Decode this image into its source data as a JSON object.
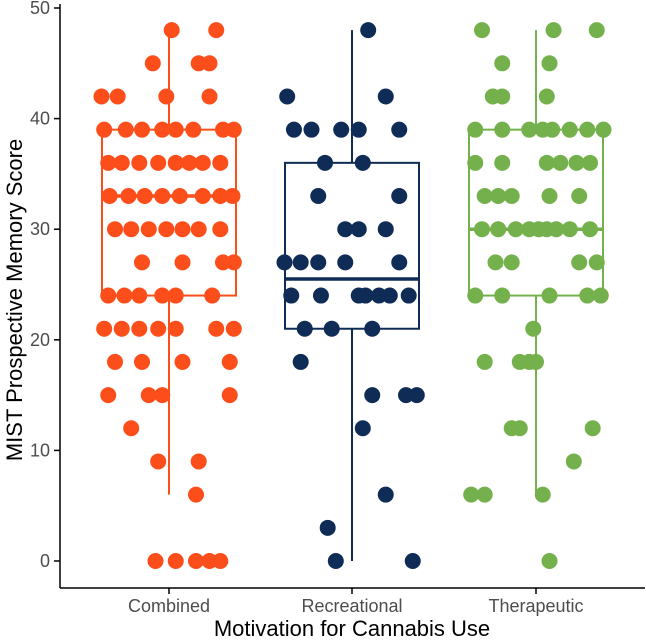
{
  "chart_data": {
    "type": "box-jitter",
    "title": "",
    "xlabel": "Motivation for Cannabis Use",
    "ylabel": "MIST Prospective Memory Score",
    "ylim": [
      -2,
      50
    ],
    "yticks": [
      0,
      10,
      20,
      30,
      40,
      50
    ],
    "categories": [
      "Combined",
      "Recreational",
      "Therapeutic"
    ],
    "grid": false,
    "legend": "none",
    "series": [
      {
        "category": "Combined",
        "color": "#FC4E1B",
        "box": {
          "whisker_low": 6,
          "q1": 24,
          "median": 33,
          "q3": 39,
          "whisker_high": 48
        },
        "points": [
          [
            0.02,
            48
          ],
          [
            0.35,
            48
          ],
          [
            -0.12,
            45
          ],
          [
            0.22,
            45
          ],
          [
            0.3,
            45
          ],
          [
            -0.5,
            42
          ],
          [
            -0.38,
            42
          ],
          [
            -0.02,
            42
          ],
          [
            0.3,
            42
          ],
          [
            -0.48,
            39
          ],
          [
            -0.32,
            39
          ],
          [
            -0.2,
            39
          ],
          [
            -0.05,
            39
          ],
          [
            0.05,
            39
          ],
          [
            0.18,
            39
          ],
          [
            0.4,
            39
          ],
          [
            0.48,
            39
          ],
          [
            -0.45,
            36
          ],
          [
            -0.35,
            36
          ],
          [
            -0.22,
            36
          ],
          [
            -0.08,
            36
          ],
          [
            0.05,
            36
          ],
          [
            0.15,
            36
          ],
          [
            0.25,
            36
          ],
          [
            0.38,
            36
          ],
          [
            -0.44,
            33
          ],
          [
            -0.3,
            33
          ],
          [
            -0.18,
            33
          ],
          [
            -0.05,
            33
          ],
          [
            0.08,
            33
          ],
          [
            0.25,
            33
          ],
          [
            0.38,
            33
          ],
          [
            0.47,
            33
          ],
          [
            -0.4,
            30
          ],
          [
            -0.28,
            30
          ],
          [
            -0.15,
            30
          ],
          [
            -0.02,
            30
          ],
          [
            0.1,
            30
          ],
          [
            0.22,
            30
          ],
          [
            0.38,
            30
          ],
          [
            -0.2,
            27
          ],
          [
            0.1,
            27
          ],
          [
            0.4,
            27
          ],
          [
            0.48,
            27
          ],
          [
            -0.45,
            24
          ],
          [
            -0.33,
            24
          ],
          [
            -0.22,
            24
          ],
          [
            -0.05,
            24
          ],
          [
            0.05,
            24
          ],
          [
            0.32,
            24
          ],
          [
            -0.48,
            21
          ],
          [
            -0.35,
            21
          ],
          [
            -0.22,
            21
          ],
          [
            -0.08,
            21
          ],
          [
            0.05,
            21
          ],
          [
            0.35,
            21
          ],
          [
            0.48,
            21
          ],
          [
            -0.4,
            18
          ],
          [
            -0.2,
            18
          ],
          [
            0.1,
            18
          ],
          [
            0.45,
            18
          ],
          [
            -0.45,
            15
          ],
          [
            -0.15,
            15
          ],
          [
            -0.05,
            15
          ],
          [
            0.45,
            15
          ],
          [
            -0.28,
            12
          ],
          [
            -0.08,
            9
          ],
          [
            0.22,
            9
          ],
          [
            0.2,
            6
          ],
          [
            -0.1,
            0
          ],
          [
            0.05,
            0
          ],
          [
            0.2,
            0
          ],
          [
            0.3,
            0
          ],
          [
            0.38,
            0
          ]
        ]
      },
      {
        "category": "Recreational",
        "color": "#0F2C56",
        "box": {
          "whisker_low": 0,
          "q1": 21,
          "median": 25.5,
          "q3": 36,
          "whisker_high": 48
        },
        "points": [
          [
            0.12,
            48
          ],
          [
            -0.48,
            42
          ],
          [
            0.25,
            42
          ],
          [
            -0.43,
            39
          ],
          [
            -0.3,
            39
          ],
          [
            -0.08,
            39
          ],
          [
            0.05,
            39
          ],
          [
            0.35,
            39
          ],
          [
            -0.2,
            36
          ],
          [
            0.08,
            36
          ],
          [
            -0.25,
            33
          ],
          [
            0.35,
            33
          ],
          [
            -0.05,
            30
          ],
          [
            0.05,
            30
          ],
          [
            0.25,
            30
          ],
          [
            -0.5,
            27
          ],
          [
            -0.38,
            27
          ],
          [
            -0.25,
            27
          ],
          [
            -0.05,
            27
          ],
          [
            0.35,
            27
          ],
          [
            -0.45,
            24
          ],
          [
            -0.23,
            24
          ],
          [
            0.05,
            24
          ],
          [
            0.1,
            24
          ],
          [
            0.2,
            24
          ],
          [
            0.28,
            24
          ],
          [
            0.42,
            24
          ],
          [
            -0.35,
            21
          ],
          [
            -0.15,
            21
          ],
          [
            0.15,
            21
          ],
          [
            -0.38,
            18
          ],
          [
            0.15,
            15
          ],
          [
            0.4,
            15
          ],
          [
            0.48,
            15
          ],
          [
            0.08,
            12
          ],
          [
            0.25,
            6
          ],
          [
            -0.18,
            3
          ],
          [
            -0.12,
            0
          ],
          [
            0.45,
            0
          ]
        ]
      },
      {
        "category": "Therapeutic",
        "color": "#74B14D",
        "box": {
          "whisker_low": 6,
          "q1": 24,
          "median": 30,
          "q3": 39,
          "whisker_high": 48
        },
        "points": [
          [
            -0.4,
            48
          ],
          [
            0.13,
            48
          ],
          [
            0.45,
            48
          ],
          [
            -0.25,
            45
          ],
          [
            0.1,
            45
          ],
          [
            -0.32,
            42
          ],
          [
            -0.25,
            42
          ],
          [
            0.08,
            42
          ],
          [
            -0.45,
            39
          ],
          [
            -0.25,
            39
          ],
          [
            -0.05,
            39
          ],
          [
            0.05,
            39
          ],
          [
            0.12,
            39
          ],
          [
            0.25,
            39
          ],
          [
            0.38,
            39
          ],
          [
            0.5,
            39
          ],
          [
            -0.45,
            36
          ],
          [
            -0.25,
            36
          ],
          [
            0.08,
            36
          ],
          [
            0.18,
            36
          ],
          [
            0.3,
            36
          ],
          [
            0.4,
            36
          ],
          [
            -0.38,
            33
          ],
          [
            -0.28,
            33
          ],
          [
            -0.18,
            33
          ],
          [
            0.1,
            33
          ],
          [
            0.32,
            33
          ],
          [
            -0.4,
            30
          ],
          [
            -0.28,
            30
          ],
          [
            -0.15,
            30
          ],
          [
            -0.05,
            30
          ],
          [
            0.02,
            30
          ],
          [
            0.08,
            30
          ],
          [
            0.15,
            30
          ],
          [
            0.25,
            30
          ],
          [
            0.4,
            30
          ],
          [
            -0.3,
            27
          ],
          [
            -0.18,
            27
          ],
          [
            0.32,
            27
          ],
          [
            0.45,
            27
          ],
          [
            -0.45,
            24
          ],
          [
            -0.25,
            24
          ],
          [
            0.1,
            24
          ],
          [
            0.38,
            24
          ],
          [
            0.48,
            24
          ],
          [
            -0.02,
            21
          ],
          [
            -0.38,
            18
          ],
          [
            -0.12,
            18
          ],
          [
            -0.05,
            18
          ],
          [
            0.0,
            18
          ],
          [
            -0.18,
            12
          ],
          [
            -0.12,
            12
          ],
          [
            0.42,
            12
          ],
          [
            0.28,
            9
          ],
          [
            -0.48,
            6
          ],
          [
            -0.38,
            6
          ],
          [
            0.05,
            6
          ],
          [
            0.1,
            0
          ]
        ]
      }
    ]
  }
}
